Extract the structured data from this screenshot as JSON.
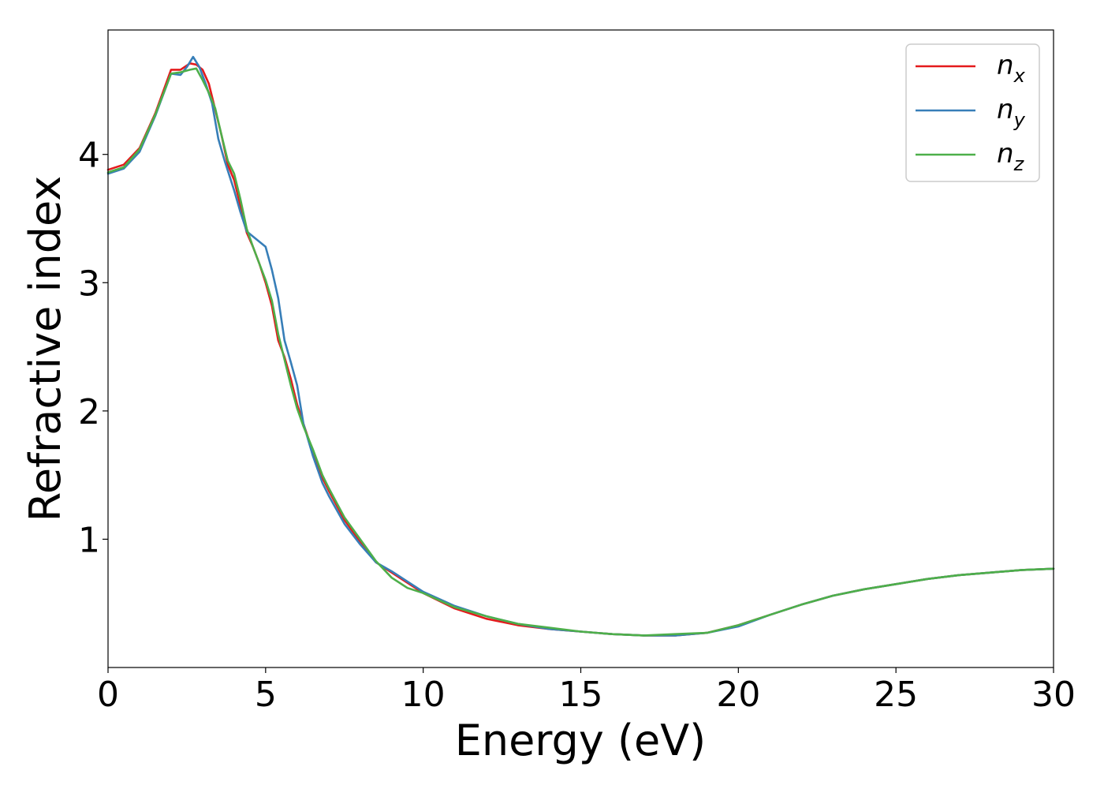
{
  "chart_data": {
    "type": "line",
    "xlabel": "Energy (eV)",
    "ylabel": "Refractive index",
    "xlim": [
      0,
      30
    ],
    "ylim": [
      0.0,
      4.97
    ],
    "xticks": [
      0,
      5,
      10,
      15,
      20,
      25,
      30
    ],
    "yticks": [
      1,
      2,
      3,
      4
    ],
    "grid": false,
    "legend_position": "upper right",
    "series": [
      {
        "name": "n_x",
        "base": "n",
        "sub": "x",
        "color": "#e41a1c",
        "x": [
          0,
          0.5,
          1.0,
          1.5,
          2.0,
          2.3,
          2.6,
          2.8,
          3.0,
          3.2,
          3.4,
          3.6,
          3.8,
          4.0,
          4.2,
          4.4,
          4.6,
          4.8,
          5.0,
          5.2,
          5.4,
          5.6,
          5.8,
          6.0,
          6.2,
          6.5,
          6.8,
          7.0,
          7.5,
          8.0,
          8.5,
          9.0,
          9.5,
          10.0,
          11,
          12,
          13,
          14,
          15,
          16,
          17,
          18,
          19,
          20,
          21,
          22,
          23,
          24,
          25,
          26,
          27,
          28,
          29,
          30
        ],
        "y": [
          3.88,
          3.92,
          4.05,
          4.32,
          4.66,
          4.66,
          4.71,
          4.7,
          4.66,
          4.55,
          4.35,
          4.15,
          3.92,
          3.8,
          3.6,
          3.39,
          3.28,
          3.15,
          3.0,
          2.82,
          2.55,
          2.42,
          2.25,
          2.05,
          1.9,
          1.68,
          1.48,
          1.38,
          1.15,
          0.98,
          0.82,
          0.74,
          0.66,
          0.58,
          0.46,
          0.38,
          0.33,
          0.3,
          0.28,
          0.26,
          0.25,
          0.25,
          0.27,
          0.33,
          0.41,
          0.49,
          0.56,
          0.61,
          0.65,
          0.69,
          0.72,
          0.74,
          0.76,
          0.77
        ]
      },
      {
        "name": "n_y",
        "base": "n",
        "sub": "y",
        "color": "#377eb8",
        "x": [
          0,
          0.5,
          1.0,
          1.5,
          2.0,
          2.3,
          2.5,
          2.7,
          2.9,
          3.1,
          3.3,
          3.5,
          3.7,
          4.0,
          4.2,
          4.4,
          4.6,
          4.8,
          5.0,
          5.2,
          5.4,
          5.6,
          5.8,
          6.0,
          6.2,
          6.5,
          6.8,
          7.0,
          7.5,
          8.0,
          8.5,
          9.0,
          9.5,
          10.0,
          11,
          12,
          13,
          14,
          15,
          16,
          17,
          18,
          19,
          20,
          21,
          22,
          23,
          24,
          25,
          26,
          27,
          28,
          29,
          30
        ],
        "y": [
          3.85,
          3.89,
          4.02,
          4.3,
          4.63,
          4.62,
          4.68,
          4.76,
          4.68,
          4.55,
          4.4,
          4.12,
          3.95,
          3.72,
          3.55,
          3.4,
          3.36,
          3.32,
          3.28,
          3.1,
          2.88,
          2.55,
          2.38,
          2.2,
          1.9,
          1.65,
          1.44,
          1.34,
          1.12,
          0.96,
          0.82,
          0.75,
          0.67,
          0.59,
          0.48,
          0.4,
          0.34,
          0.3,
          0.28,
          0.26,
          0.25,
          0.25,
          0.27,
          0.32,
          0.41,
          0.49,
          0.56,
          0.61,
          0.65,
          0.69,
          0.72,
          0.74,
          0.76,
          0.77
        ]
      },
      {
        "name": "n_z",
        "base": "n",
        "sub": "z",
        "color": "#4daf4a",
        "x": [
          0,
          0.5,
          1.0,
          1.5,
          2.0,
          2.3,
          2.6,
          2.8,
          3.0,
          3.2,
          3.4,
          3.6,
          3.8,
          4.0,
          4.2,
          4.4,
          4.6,
          4.8,
          5.0,
          5.2,
          5.4,
          5.6,
          5.8,
          6.0,
          6.2,
          6.5,
          6.8,
          7.0,
          7.5,
          8.0,
          8.5,
          9.0,
          9.5,
          10.0,
          11,
          12,
          13,
          14,
          15,
          16,
          17,
          18,
          19,
          20,
          21,
          22,
          23,
          24,
          25,
          26,
          27,
          28,
          29,
          30
        ],
        "y": [
          3.86,
          3.9,
          4.04,
          4.31,
          4.63,
          4.64,
          4.66,
          4.67,
          4.58,
          4.48,
          4.36,
          4.15,
          3.95,
          3.85,
          3.65,
          3.42,
          3.28,
          3.15,
          3.02,
          2.86,
          2.6,
          2.4,
          2.2,
          2.02,
          1.88,
          1.7,
          1.5,
          1.4,
          1.17,
          1.0,
          0.83,
          0.7,
          0.62,
          0.58,
          0.47,
          0.4,
          0.34,
          0.31,
          0.28,
          0.26,
          0.25,
          0.26,
          0.27,
          0.33,
          0.41,
          0.49,
          0.56,
          0.61,
          0.65,
          0.69,
          0.72,
          0.74,
          0.76,
          0.77
        ]
      }
    ]
  }
}
